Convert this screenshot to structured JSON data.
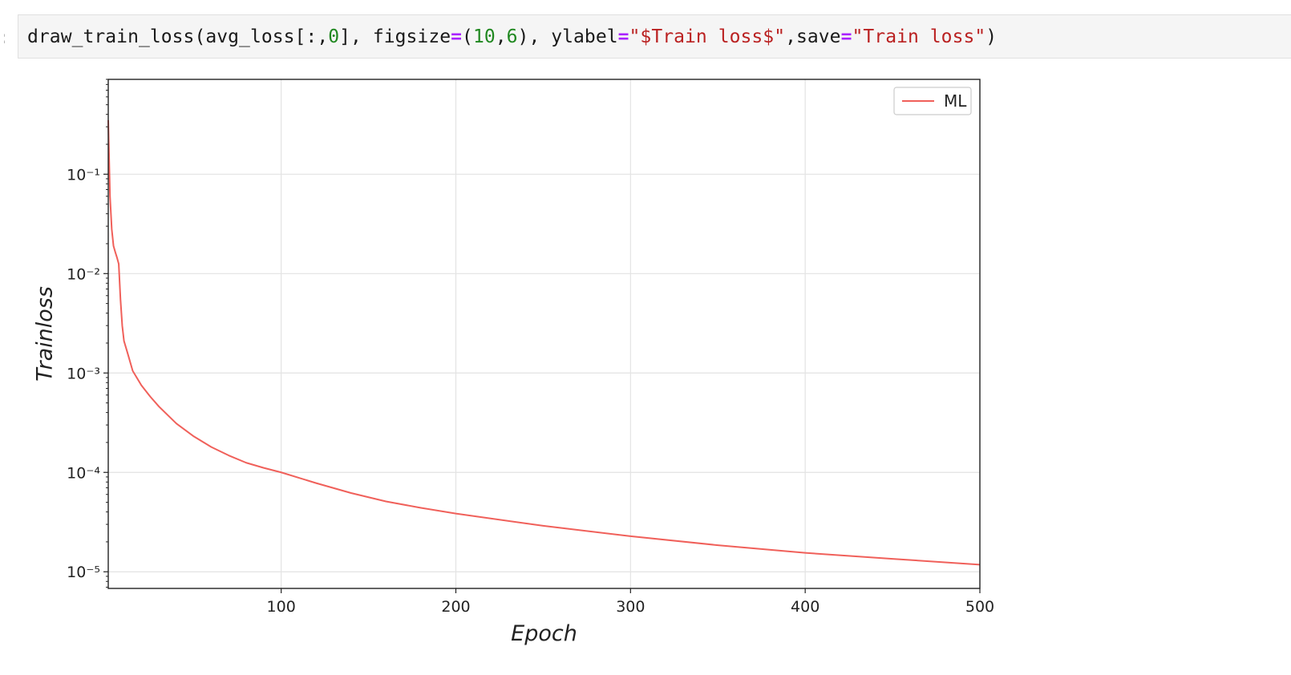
{
  "cell": {
    "prompt": ":",
    "code_tokens": [
      {
        "text": "draw_train_loss(avg_loss[:,",
        "kind": "plain"
      },
      {
        "text": "0",
        "kind": "num"
      },
      {
        "text": "], figsize",
        "kind": "plain"
      },
      {
        "text": "=",
        "kind": "op"
      },
      {
        "text": "(",
        "kind": "plain"
      },
      {
        "text": "10",
        "kind": "num"
      },
      {
        "text": ",",
        "kind": "plain"
      },
      {
        "text": "6",
        "kind": "num"
      },
      {
        "text": "), ylabel",
        "kind": "plain"
      },
      {
        "text": "=",
        "kind": "op"
      },
      {
        "text": "\"$Train loss$\"",
        "kind": "str"
      },
      {
        "text": ",save",
        "kind": "plain"
      },
      {
        "text": "=",
        "kind": "op"
      },
      {
        "text": "\"Train loss\"",
        "kind": "str"
      },
      {
        "text": ")",
        "kind": "plain"
      }
    ]
  },
  "colors": {
    "line": "#f0605a",
    "grid": "#e3e3e3",
    "axes": "#222222",
    "code_bg": "#f5f5f5"
  },
  "chart_data": {
    "type": "line",
    "xlabel": "Epoch",
    "ylabel": "Trainloss",
    "xscale": "linear",
    "yscale": "log",
    "xlim": [
      1,
      500
    ],
    "ylim": [
      6.8e-06,
      0.9
    ],
    "xticks": [
      100,
      200,
      300,
      400,
      500
    ],
    "yticks": [
      {
        "value": 0.1,
        "label": "10⁻¹"
      },
      {
        "value": 0.01,
        "label": "10⁻²"
      },
      {
        "value": 0.001,
        "label": "10⁻³"
      },
      {
        "value": 0.0001,
        "label": "10⁻⁴"
      },
      {
        "value": 1e-05,
        "label": "10⁻⁵"
      }
    ],
    "grid": true,
    "legend": {
      "position": "top-right",
      "entries": [
        "ML"
      ]
    },
    "series": [
      {
        "name": "ML",
        "color": "#f0605a",
        "points": [
          [
            1,
            0.35
          ],
          [
            2,
            0.06
          ],
          [
            3,
            0.028
          ],
          [
            4,
            0.019
          ],
          [
            5,
            0.0165
          ],
          [
            6,
            0.0145
          ],
          [
            7,
            0.0125
          ],
          [
            8,
            0.0055
          ],
          [
            9,
            0.003
          ],
          [
            10,
            0.0021
          ],
          [
            12,
            0.0016
          ],
          [
            15,
            0.00105
          ],
          [
            20,
            0.00075
          ],
          [
            25,
            0.00058
          ],
          [
            30,
            0.00046
          ],
          [
            40,
            0.00031
          ],
          [
            50,
            0.00023
          ],
          [
            60,
            0.00018
          ],
          [
            70,
            0.000148
          ],
          [
            80,
            0.000125
          ],
          [
            90,
            0.000111
          ],
          [
            100,
            0.0001
          ],
          [
            120,
            7.8e-05
          ],
          [
            140,
            6.2e-05
          ],
          [
            160,
            5.1e-05
          ],
          [
            180,
            4.4e-05
          ],
          [
            200,
            3.85e-05
          ],
          [
            250,
            2.9e-05
          ],
          [
            300,
            2.28e-05
          ],
          [
            350,
            1.85e-05
          ],
          [
            400,
            1.55e-05
          ],
          [
            450,
            1.35e-05
          ],
          [
            500,
            1.18e-05
          ]
        ]
      }
    ]
  }
}
